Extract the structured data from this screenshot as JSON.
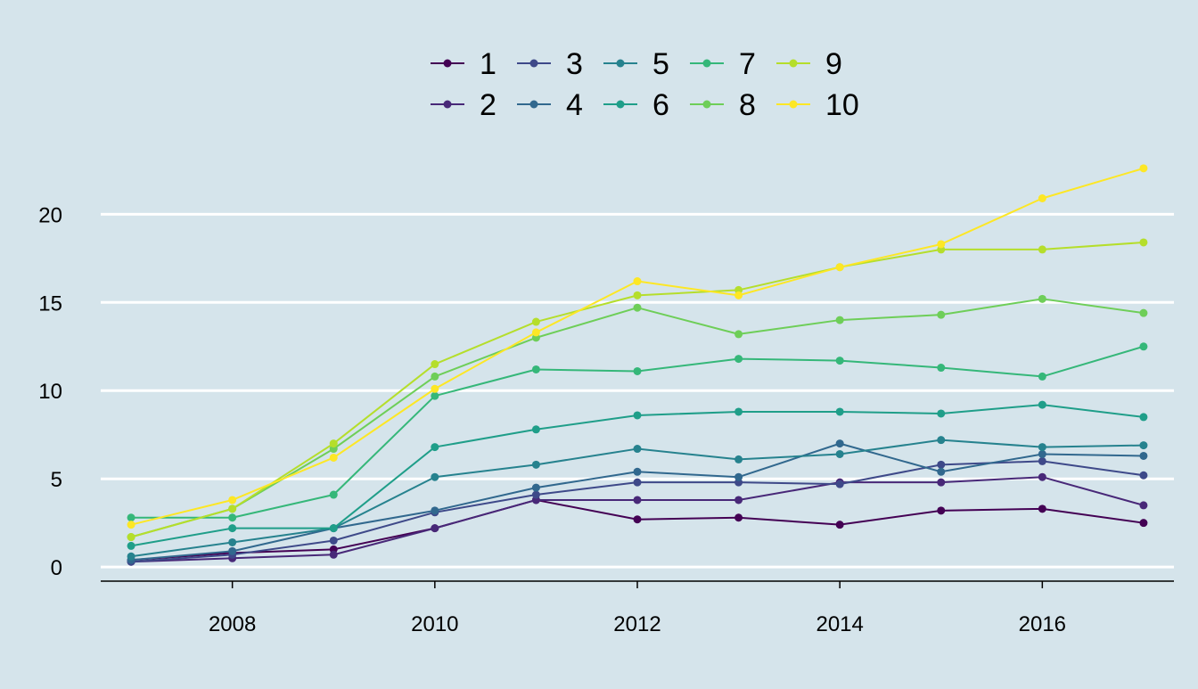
{
  "chart_data": {
    "type": "line",
    "title": "",
    "xlabel": "",
    "ylabel": "",
    "background": "#d5e4eb",
    "grid": {
      "horizontal": true,
      "vertical": false,
      "color": "#ffffff"
    },
    "legend_position": "top-center",
    "xlim": [
      2006.7,
      2017.3
    ],
    "ylim": [
      -0.8,
      23.3
    ],
    "x_ticks": [
      2008,
      2010,
      2012,
      2014,
      2016
    ],
    "x_tick_labels": [
      "2008",
      "2010",
      "2012",
      "2014",
      "2016"
    ],
    "y_ticks": [
      0,
      5,
      10,
      15,
      20
    ],
    "y_tick_labels": [
      "0",
      "5",
      "10",
      "15",
      "20"
    ],
    "x": [
      2007,
      2008,
      2009,
      2010,
      2011,
      2012,
      2013,
      2014,
      2015,
      2016,
      2017
    ],
    "series": [
      {
        "name": "1",
        "color": "#440154",
        "values": [
          0.4,
          0.8,
          1.0,
          2.2,
          3.8,
          2.7,
          2.8,
          2.4,
          3.2,
          3.3,
          2.5
        ]
      },
      {
        "name": "2",
        "color": "#482878",
        "values": [
          0.3,
          0.5,
          0.7,
          2.2,
          3.8,
          3.8,
          3.8,
          4.8,
          4.8,
          5.1,
          3.5
        ]
      },
      {
        "name": "3",
        "color": "#3e4989",
        "values": [
          0.3,
          0.7,
          1.5,
          3.1,
          4.1,
          4.8,
          4.8,
          4.7,
          5.8,
          6.0,
          5.2
        ]
      },
      {
        "name": "4",
        "color": "#31688e",
        "values": [
          0.4,
          0.9,
          2.2,
          3.2,
          4.5,
          5.4,
          5.1,
          7.0,
          5.4,
          6.4,
          6.3
        ]
      },
      {
        "name": "5",
        "color": "#26828e",
        "values": [
          0.6,
          1.4,
          2.2,
          5.1,
          5.8,
          6.7,
          6.1,
          6.4,
          7.2,
          6.8,
          6.9
        ]
      },
      {
        "name": "6",
        "color": "#1f9e89",
        "values": [
          1.2,
          2.2,
          2.2,
          6.8,
          7.8,
          8.6,
          8.8,
          8.8,
          8.7,
          9.2,
          8.5
        ]
      },
      {
        "name": "7",
        "color": "#35b779",
        "values": [
          2.8,
          2.8,
          4.1,
          9.7,
          11.2,
          11.1,
          11.8,
          11.7,
          11.3,
          10.8,
          12.5
        ]
      },
      {
        "name": "8",
        "color": "#6ece58",
        "values": [
          1.7,
          3.3,
          6.7,
          10.8,
          13.0,
          14.7,
          13.2,
          14.0,
          14.3,
          15.2,
          14.4
        ]
      },
      {
        "name": "9",
        "color": "#b5de2b",
        "values": [
          1.7,
          3.3,
          7.0,
          11.5,
          13.9,
          15.4,
          15.7,
          17.0,
          18.0,
          18.0,
          18.4
        ]
      },
      {
        "name": "10",
        "color": "#fde725",
        "values": [
          2.4,
          3.8,
          6.2,
          10.1,
          13.3,
          16.2,
          15.4,
          17.0,
          18.3,
          20.9,
          22.6
        ]
      }
    ]
  }
}
